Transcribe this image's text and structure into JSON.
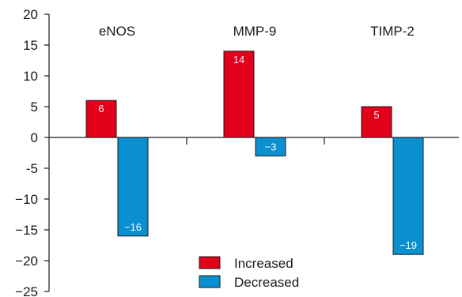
{
  "chart_data": {
    "type": "bar",
    "categories": [
      "eNOS",
      "MMP-9",
      "TIMP-2"
    ],
    "series": [
      {
        "name": "Increased",
        "color": "#e2001a",
        "values": [
          6,
          14,
          5
        ],
        "labels": [
          "6",
          "14",
          "5"
        ]
      },
      {
        "name": "Decreased",
        "color": "#0a8fd0",
        "values": [
          -16,
          -3,
          -19
        ],
        "labels": [
          "−16",
          "−3",
          "−19"
        ]
      }
    ],
    "ylim": [
      -25,
      20
    ],
    "yticks": [
      20,
      15,
      10,
      5,
      0,
      -5,
      -10,
      -15,
      -20,
      -25
    ],
    "ytick_labels": [
      "20",
      "15",
      "10",
      "5",
      "0",
      "-5",
      "−10",
      "−15",
      "−20",
      "−25"
    ],
    "legend_position": "bottom-center",
    "grid": false
  }
}
